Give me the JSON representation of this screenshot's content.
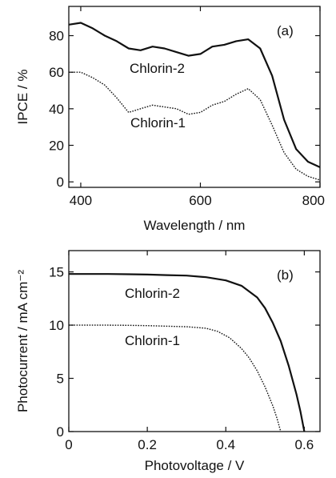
{
  "chart_data": [
    {
      "panel": "(a)",
      "type": "line",
      "xlabel": "Wavelength / nm",
      "ylabel": "IPCE / %",
      "xlim": [
        380,
        800
      ],
      "ylim": [
        -3,
        96
      ],
      "xticks": [
        400,
        600,
        800
      ],
      "yticks": [
        0,
        20,
        40,
        60,
        80
      ],
      "grid": false,
      "series": [
        {
          "name": "Chlorin-2",
          "style": "solid",
          "x": [
            380,
            400,
            420,
            440,
            460,
            480,
            500,
            520,
            540,
            560,
            580,
            600,
            620,
            640,
            660,
            680,
            700,
            720,
            740,
            760,
            780,
            800
          ],
          "y": [
            86,
            87,
            84,
            80,
            77,
            73,
            72,
            74,
            73,
            71,
            69,
            70,
            74,
            75,
            77,
            78,
            73,
            58,
            34,
            18,
            11,
            8
          ]
        },
        {
          "name": "Chlorin-1",
          "style": "dotted",
          "x": [
            380,
            400,
            420,
            440,
            460,
            480,
            500,
            520,
            540,
            560,
            580,
            600,
            620,
            640,
            660,
            680,
            700,
            720,
            740,
            760,
            780,
            800
          ],
          "y": [
            60,
            60,
            57,
            53,
            46,
            38,
            40,
            42,
            41,
            40,
            37,
            38,
            42,
            44,
            48,
            51,
            45,
            31,
            16,
            7,
            3,
            1
          ]
        }
      ]
    },
    {
      "panel": "(b)",
      "type": "line",
      "xlabel": "Photovoltage / V",
      "ylabel": "Photocurrent / mA cm⁻²",
      "xlim": [
        0,
        0.64
      ],
      "ylim": [
        0,
        17
      ],
      "xticks": [
        0,
        0.2,
        0.4,
        0.6
      ],
      "yticks": [
        0,
        5,
        10,
        15
      ],
      "grid": false,
      "series": [
        {
          "name": "Chlorin-2",
          "style": "solid",
          "x": [
            0,
            0.05,
            0.1,
            0.15,
            0.2,
            0.25,
            0.3,
            0.35,
            0.4,
            0.44,
            0.48,
            0.5,
            0.52,
            0.54,
            0.56,
            0.58,
            0.59,
            0.6
          ],
          "y": [
            14.8,
            14.8,
            14.8,
            14.78,
            14.75,
            14.7,
            14.65,
            14.5,
            14.2,
            13.7,
            12.6,
            11.6,
            10.2,
            8.5,
            6.2,
            3.5,
            1.9,
            0
          ]
        },
        {
          "name": "Chlorin-1",
          "style": "dotted",
          "x": [
            0,
            0.05,
            0.1,
            0.15,
            0.2,
            0.25,
            0.3,
            0.35,
            0.38,
            0.41,
            0.44,
            0.46,
            0.48,
            0.5,
            0.52,
            0.53,
            0.54
          ],
          "y": [
            10.0,
            10.0,
            10.0,
            9.98,
            9.95,
            9.9,
            9.85,
            9.7,
            9.4,
            8.8,
            7.8,
            6.9,
            5.7,
            4.2,
            2.4,
            1.3,
            0
          ]
        }
      ]
    }
  ]
}
